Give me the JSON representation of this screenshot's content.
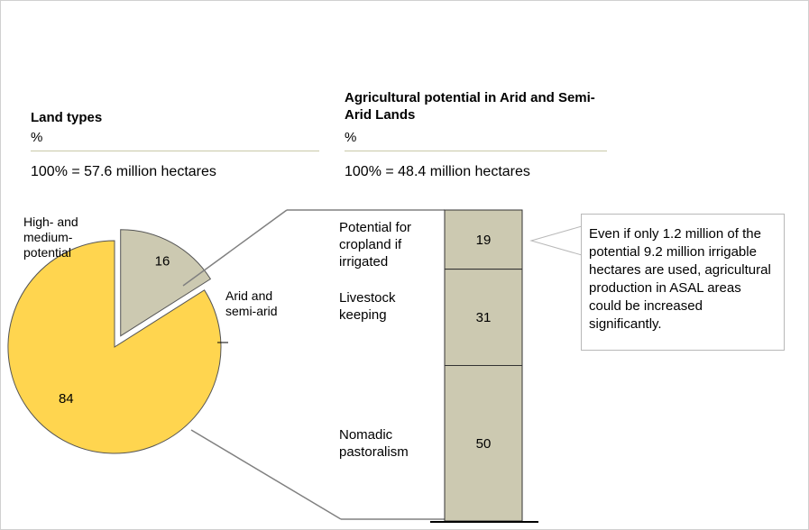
{
  "left_panel": {
    "title": "Land types",
    "unit": "%",
    "base": "100% = 57.6 million hectares"
  },
  "right_panel": {
    "title": "Agricultural potential in Arid and Semi-Arid Lands",
    "unit": "%",
    "base": "100% = 48.4 million hectares"
  },
  "callout": {
    "text": "Even if only 1.2 million of the potential 9.2 million irrigable hectares are used, agricultural production in ASAL areas could be increased significantly."
  },
  "colors": {
    "pie_major": "#FFD54F",
    "pie_minor": "#CCC9B1",
    "bar_segment": "#CCC9B1",
    "connector": "#808080"
  },
  "chart_data": [
    {
      "type": "pie",
      "title": "Land types",
      "slices": [
        {
          "label": "Arid and semi-arid",
          "value": 84
        },
        {
          "label": "High- and medium-potential",
          "value": 16
        }
      ],
      "data_labels": [
        "84",
        "16"
      ],
      "labels_text": {
        "arid": "Arid and semi-arid",
        "high": "High- and medium-potential"
      }
    },
    {
      "type": "bar",
      "stacked": true,
      "title": "Agricultural potential in Arid and Semi-Arid Lands",
      "segments": [
        {
          "label": "Potential for cropland if irrigated",
          "value": 19
        },
        {
          "label": "Livestock keeping",
          "value": 31
        },
        {
          "label": "Nomadic pastoralism",
          "value": 50
        }
      ],
      "data_labels": [
        "19",
        "31",
        "50"
      ]
    }
  ]
}
